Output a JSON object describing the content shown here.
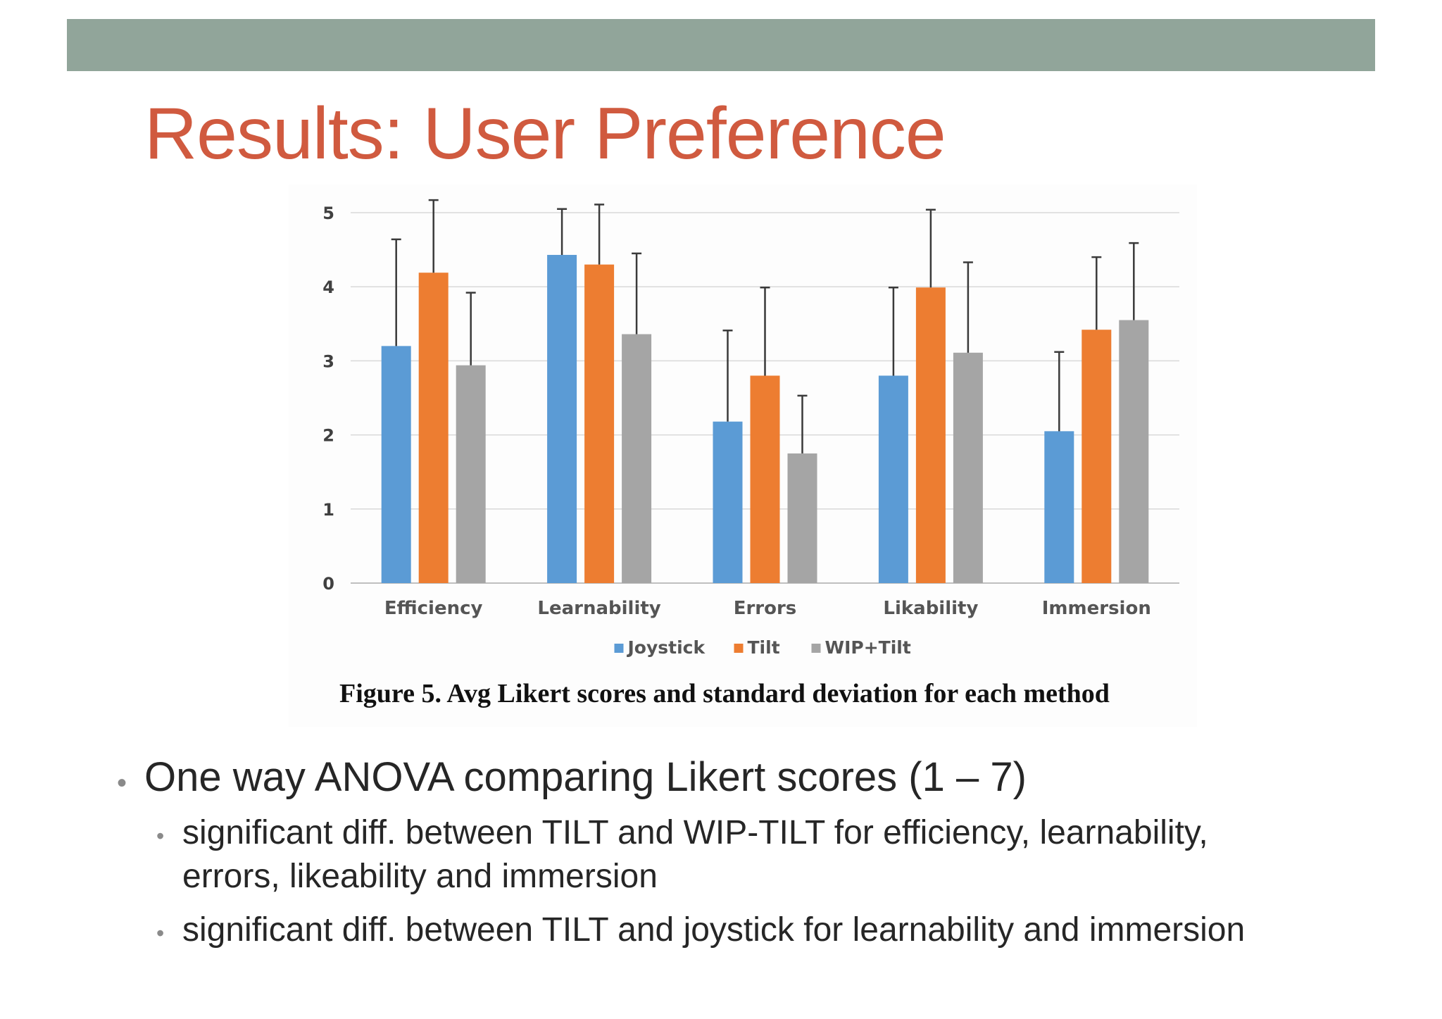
{
  "slide": {
    "title": "Results: User Preference",
    "caption": "Figure 5. Avg Likert scores and standard deviation for each method",
    "bullets": {
      "main": "One way ANOVA comparing Likert scores (1 – 7)",
      "sub": [
        "significant diff. between TILT and WIP-TILT for efficiency, learnability, errors, likeability and immersion",
        "significant diff. between TILT and joystick for learnability and immersion"
      ]
    }
  },
  "chart_data": {
    "type": "bar",
    "title": "",
    "xlabel": "",
    "ylabel": "",
    "ylim": [
      0,
      5
    ],
    "yticks": [
      "0",
      "1",
      "2",
      "3",
      "4",
      "5"
    ],
    "grid": true,
    "legend_position": "bottom",
    "categories": [
      "Efficiency",
      "Learnability",
      "Errors",
      "Likability",
      "Immersion"
    ],
    "series": [
      {
        "name": "Joystick",
        "color": "#5b9bd5",
        "values": [
          3.2,
          4.43,
          2.18,
          2.8,
          2.05
        ],
        "error_upper": [
          4.64,
          5.05,
          3.41,
          3.99,
          3.12
        ]
      },
      {
        "name": "Tilt",
        "color": "#ed7d31",
        "values": [
          4.19,
          4.3,
          2.8,
          3.99,
          3.42
        ],
        "error_upper": [
          5.17,
          5.11,
          3.99,
          5.04,
          4.4
        ]
      },
      {
        "name": "WIP+Tilt",
        "color": "#a5a5a5",
        "values": [
          2.94,
          3.36,
          1.75,
          3.11,
          3.55
        ],
        "error_upper": [
          3.92,
          4.45,
          2.53,
          4.33,
          4.59
        ]
      }
    ]
  }
}
